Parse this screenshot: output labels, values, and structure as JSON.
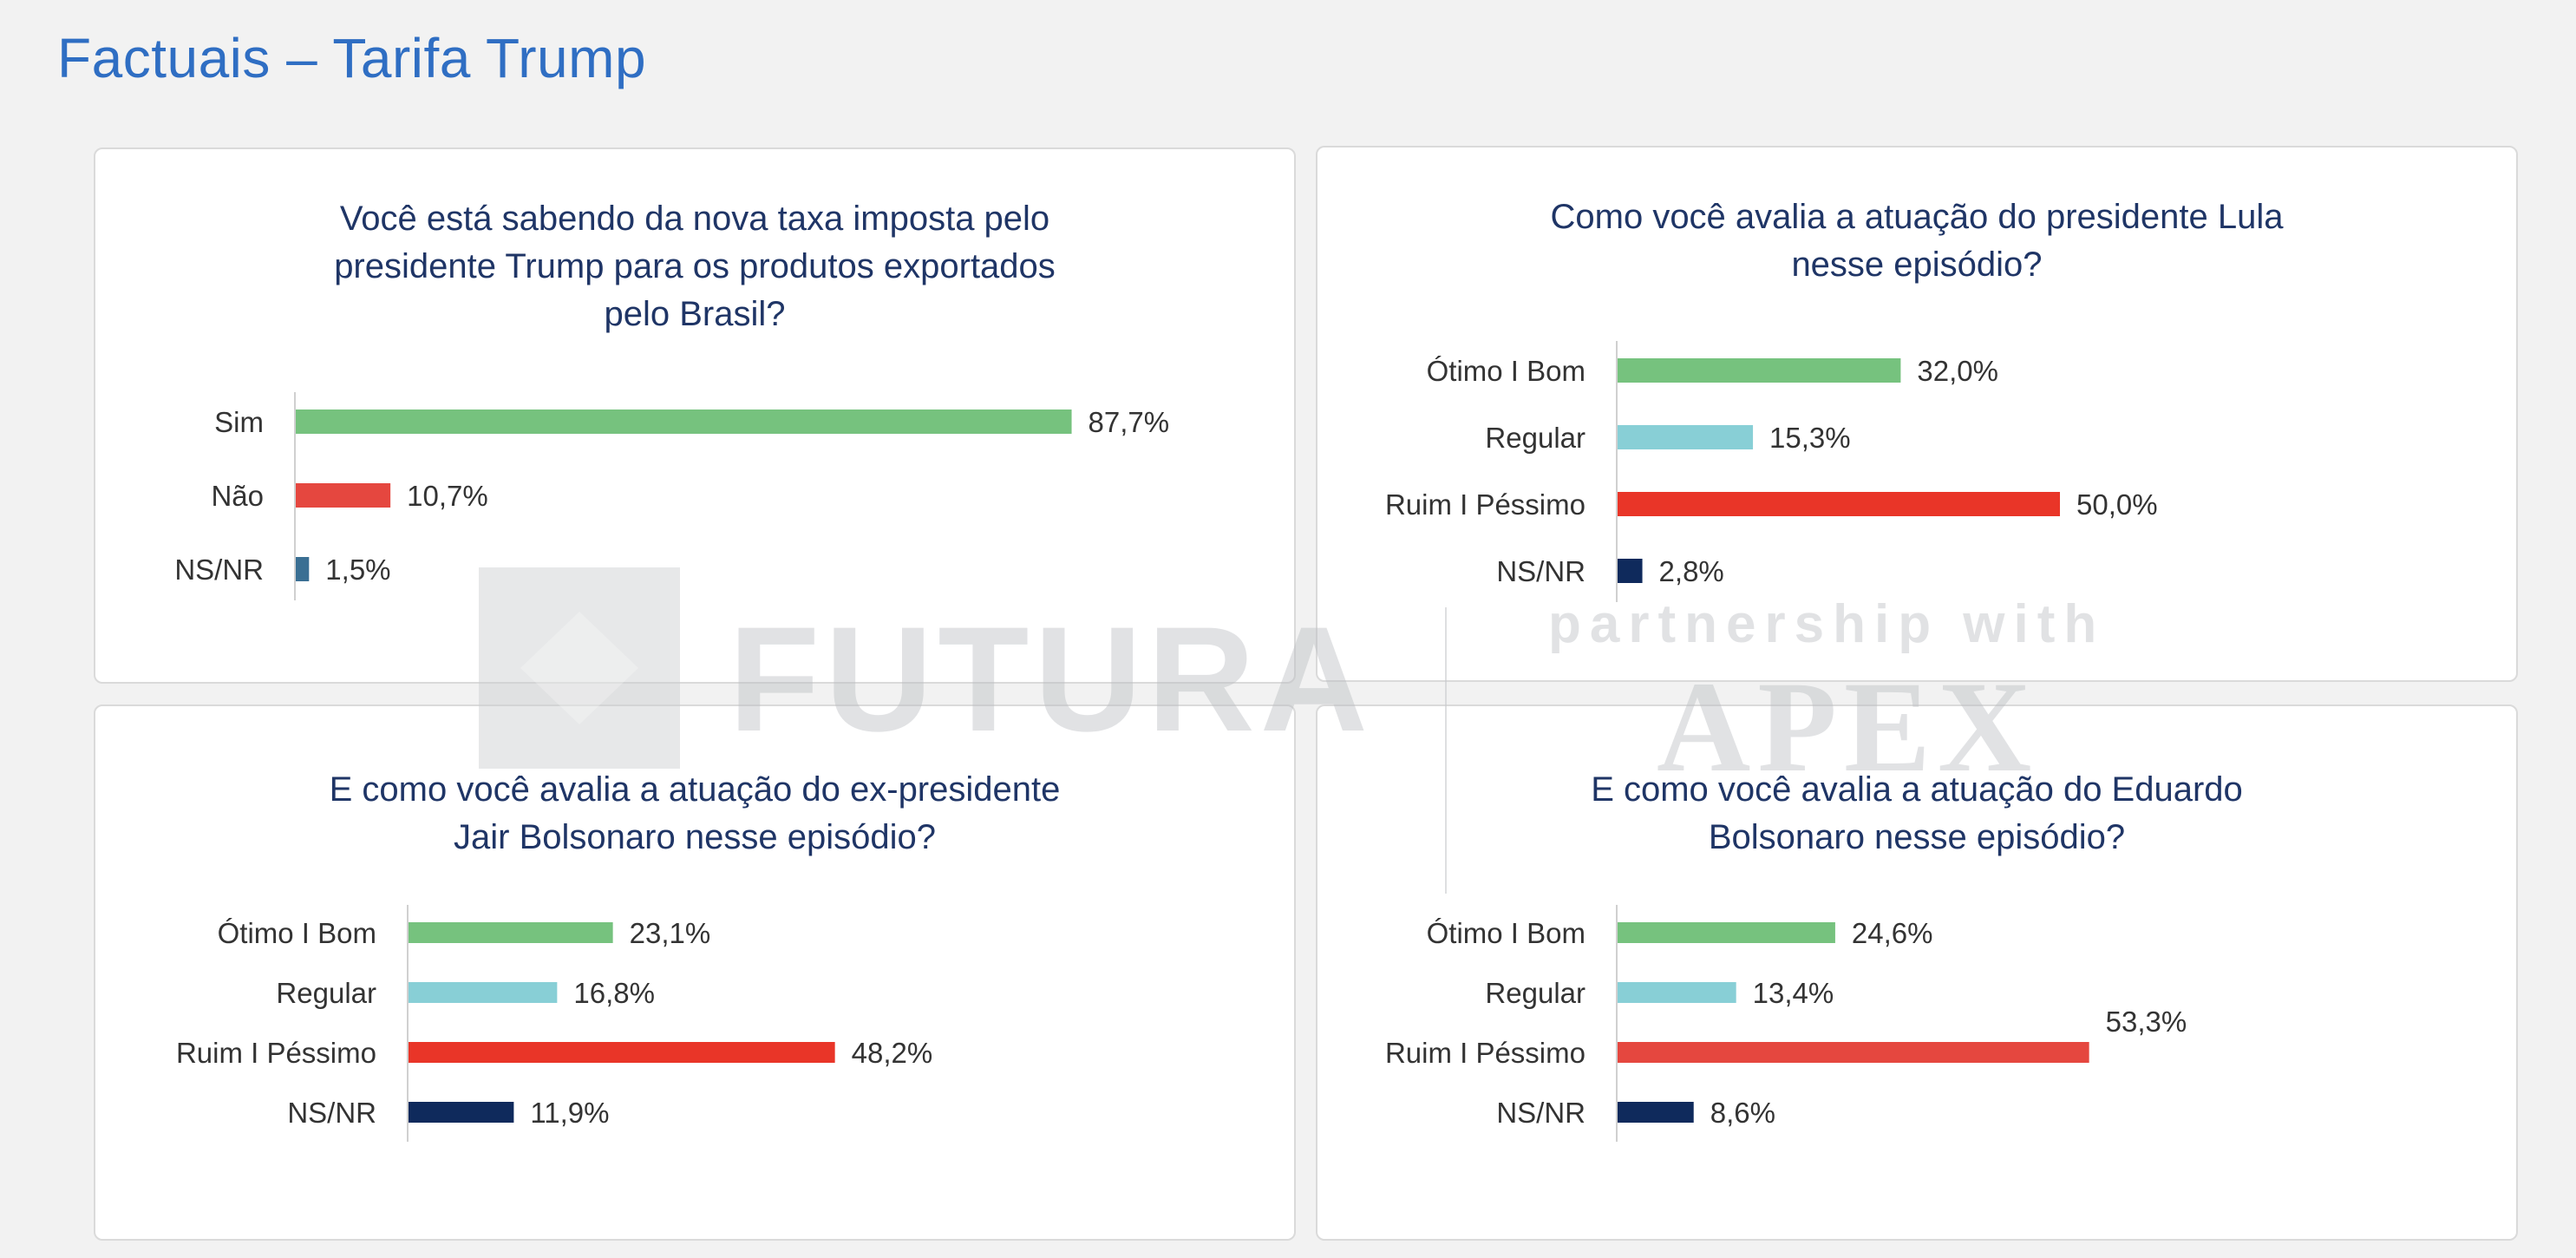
{
  "page": {
    "title": "Factuais – Tarifa Trump"
  },
  "watermark": {
    "brand": "FUTURA",
    "tagline": "partnership with",
    "partner": "APEX"
  },
  "colors": {
    "title": "#2f6ec3",
    "question": "#1f3566",
    "green": "#76c27e",
    "cyan": "#88cfd6",
    "red": "#e93528",
    "red_soft": "#e5473f",
    "navy": "#0f2a5c",
    "steel": "#3a6f93"
  },
  "chart_data": [
    {
      "type": "bar",
      "orientation": "horizontal",
      "title": "Você está sabendo da nova taxa imposta pelo presidente Trump para os produtos exportados pelo Brasil?",
      "title_lines": [
        "Você está sabendo da nova taxa imposta pelo",
        "presidente Trump para os produtos exportados",
        "pelo Brasil?"
      ],
      "categories": [
        "Sim",
        "Não",
        "NS/NR"
      ],
      "values": [
        87.7,
        10.7,
        1.5
      ],
      "labels": [
        "87,7%",
        "10,7%",
        "1,5%"
      ],
      "colors": [
        "#76c27e",
        "#e5473f",
        "#3a6f93"
      ],
      "xlim": [
        0,
        100
      ]
    },
    {
      "type": "bar",
      "orientation": "horizontal",
      "title": "Como você avalia a atuação do presidente Lula nesse episódio?",
      "title_lines": [
        "Como você avalia a atuação do presidente Lula",
        "nesse episódio?"
      ],
      "categories": [
        "Ótimo I Bom",
        "Regular",
        "Ruim I Péssimo",
        "NS/NR"
      ],
      "values": [
        32.0,
        15.3,
        50.0,
        2.8
      ],
      "labels": [
        "32,0%",
        "15,3%",
        "50,0%",
        "2,8%"
      ],
      "colors": [
        "#76c27e",
        "#88cfd6",
        "#e93528",
        "#0f2a5c"
      ],
      "xlim": [
        0,
        100
      ]
    },
    {
      "type": "bar",
      "orientation": "horizontal",
      "title": "E como você avalia a atuação do ex-presidente Jair Bolsonaro nesse episódio?",
      "title_lines": [
        "E como você avalia a atuação do ex-presidente",
        "Jair Bolsonaro nesse episódio?"
      ],
      "categories": [
        "Ótimo I Bom",
        "Regular",
        "Ruim I Péssimo",
        "NS/NR"
      ],
      "values": [
        23.1,
        16.8,
        48.2,
        11.9
      ],
      "labels": [
        "23,1%",
        "16,8%",
        "48,2%",
        "11,9%"
      ],
      "colors": [
        "#76c27e",
        "#88cfd6",
        "#e93528",
        "#0f2a5c"
      ],
      "xlim": [
        0,
        100
      ]
    },
    {
      "type": "bar",
      "orientation": "horizontal",
      "title": "E como você avalia a atuação do Eduardo Bolsonaro nesse episódio?",
      "title_lines": [
        "E como você avalia a atuação do Eduardo",
        "Bolsonaro nesse episódio?"
      ],
      "categories": [
        "Ótimo I Bom",
        "Regular",
        "Ruim I Péssimo",
        "NS/NR"
      ],
      "values": [
        24.6,
        13.4,
        53.3,
        8.6
      ],
      "labels": [
        "24,6%",
        "13,4%",
        "53,3%",
        "8,6%"
      ],
      "colors": [
        "#76c27e",
        "#88cfd6",
        "#e5473f",
        "#0f2a5c"
      ],
      "xlim": [
        0,
        100
      ]
    }
  ]
}
